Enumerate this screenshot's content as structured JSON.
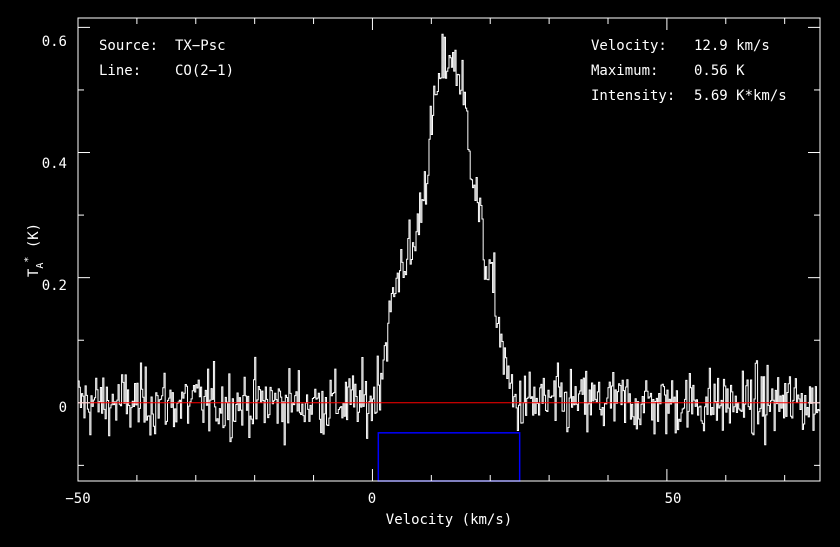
{
  "chart_data": {
    "type": "line",
    "xlabel": "Velocity (km/s)",
    "ylabel": "T",
    "ylabel_sub": "A",
    "ylabel_sup": "*",
    "ylabel_unit": " (K)",
    "xlim": [
      -50,
      76
    ],
    "ylim": [
      -0.125,
      0.615
    ],
    "xticks": [
      -50,
      0,
      50
    ],
    "yticks": [
      0,
      0.2,
      0.4,
      0.6
    ],
    "xtick_labels": [
      "−50",
      "0",
      "50"
    ],
    "ytick_labels": [
      "0",
      "0.2",
      "0.4",
      "0.6"
    ],
    "grid": false,
    "baseline": 0,
    "velocity_window": {
      "x0": 1,
      "x1": 25,
      "y_top": -0.048
    },
    "info_left": [
      {
        "label": "Source:",
        "value": "TX−Psc"
      },
      {
        "label": "Line:",
        "value": "CO(2−1)"
      }
    ],
    "info_right": [
      {
        "label": "Velocity:",
        "value": "12.9 km/s"
      },
      {
        "label": "Maximum:",
        "value": "0.56 K"
      },
      {
        "label": "Intensity:",
        "value": "5.69 K*km/s"
      }
    ],
    "line_profile": {
      "x": [
        -50,
        0,
        1.5,
        3,
        5,
        7,
        9,
        11,
        12.9,
        15,
        17,
        19,
        21,
        22.5,
        24,
        76
      ],
      "y": [
        0,
        0,
        0.05,
        0.14,
        0.23,
        0.24,
        0.36,
        0.5,
        0.56,
        0.52,
        0.38,
        0.24,
        0.16,
        0.06,
        0,
        0
      ]
    },
    "noise_rms": 0.035,
    "colors": {
      "spectrum": "#ffffff",
      "baseline": "#ff0000",
      "window": "#0000ff",
      "axes": "#ffffff",
      "background": "#000000"
    }
  }
}
